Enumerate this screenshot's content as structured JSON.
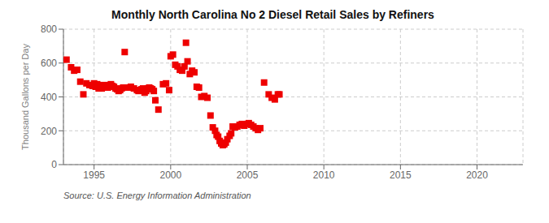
{
  "chart_data": {
    "type": "scatter",
    "title": "Monthly North Carolina No 2 Diesel Retail Sales by Refiners",
    "y_label": "Thousand Gallons per Day",
    "annotations": [
      "Source: U.S. Energy Information Administration"
    ],
    "color": "#EE0000",
    "marker": "square",
    "grid": true,
    "xlim": [
      1993.0,
      2023.0
    ],
    "ylim": [
      0,
      800
    ],
    "xticks": [
      1995,
      2000,
      2005,
      2010,
      2015,
      2020
    ],
    "yticks": [
      0,
      200,
      400,
      600,
      800
    ],
    "x": [
      1993.2,
      1993.5,
      1993.7,
      1993.9,
      1994.1,
      1994.3,
      1994.5,
      1994.7,
      1994.9,
      1995.0,
      1995.1,
      1995.2,
      1995.3,
      1995.4,
      1995.5,
      1995.6,
      1995.7,
      1995.8,
      1995.9,
      1996.0,
      1996.1,
      1996.2,
      1996.3,
      1996.4,
      1996.5,
      1996.6,
      1996.7,
      1996.8,
      1996.9,
      1997.0,
      1997.2,
      1997.4,
      1997.6,
      1997.8,
      1997.9,
      1998.0,
      1998.1,
      1998.2,
      1998.3,
      1998.4,
      1998.5,
      1998.6,
      1998.7,
      1998.8,
      1998.9,
      1999.0,
      1999.2,
      1999.5,
      1999.7,
      1999.9,
      2000.0,
      2000.15,
      2000.3,
      2000.45,
      2000.6,
      2000.75,
      2000.9,
      2001.0,
      2001.1,
      2001.25,
      2001.4,
      2001.55,
      2001.7,
      2001.85,
      2002.0,
      2002.2,
      2002.4,
      2002.6,
      2002.75,
      2002.9,
      2003.0,
      2003.1,
      2003.2,
      2003.3,
      2003.4,
      2003.5,
      2003.6,
      2003.7,
      2003.85,
      2003.95,
      2004.05,
      2004.2,
      2004.35,
      2004.5,
      2004.65,
      2004.8,
      2005.0,
      2005.1,
      2005.25,
      2005.4,
      2005.55,
      2005.7,
      2005.85,
      2006.1,
      2006.4,
      2006.6,
      2006.8,
      2007.0,
      2007.1
    ],
    "values": [
      620,
      575,
      555,
      560,
      490,
      415,
      480,
      470,
      465,
      480,
      460,
      475,
      450,
      460,
      450,
      470,
      455,
      465,
      455,
      470,
      475,
      465,
      460,
      450,
      445,
      435,
      440,
      450,
      455,
      665,
      455,
      460,
      450,
      440,
      435,
      440,
      445,
      450,
      425,
      435,
      450,
      455,
      450,
      445,
      435,
      380,
      325,
      475,
      480,
      440,
      640,
      650,
      590,
      580,
      560,
      555,
      580,
      720,
      610,
      535,
      555,
      545,
      460,
      455,
      400,
      405,
      395,
      290,
      220,
      200,
      175,
      165,
      140,
      125,
      115,
      120,
      130,
      150,
      170,
      185,
      225,
      220,
      225,
      235,
      240,
      230,
      240,
      245,
      235,
      225,
      215,
      205,
      215,
      485,
      415,
      395,
      385,
      415,
      415
    ]
  }
}
